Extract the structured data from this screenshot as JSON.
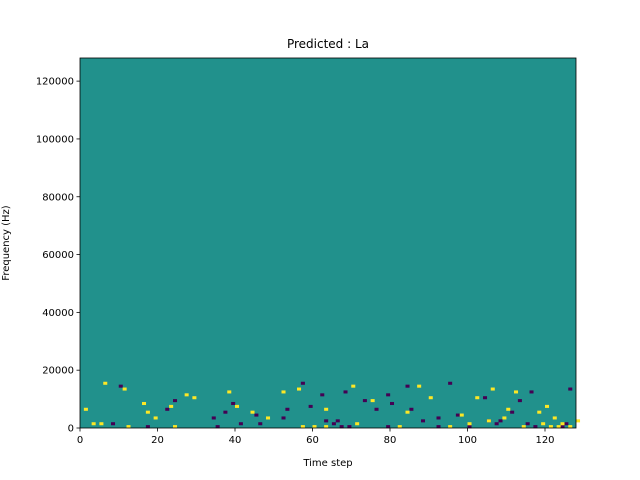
{
  "chart_data": {
    "type": "heatmap",
    "title": "Predicted : La",
    "xlabel": "Time step",
    "ylabel": "Frequency (Hz)",
    "xlim": [
      0,
      128
    ],
    "ylim": [
      0,
      128000
    ],
    "x_ticks": [
      0,
      20,
      40,
      60,
      80,
      100,
      120
    ],
    "y_ticks": [
      0,
      20000,
      40000,
      60000,
      80000,
      100000,
      120000
    ],
    "grid": false,
    "legend": "none",
    "n_time_steps": 128,
    "n_freq_bins": 128,
    "colors": {
      "background": "#21918c",
      "high": "#fde725",
      "low": "#440154"
    },
    "cells_low": [
      [
        8,
        1
      ],
      [
        17,
        0
      ],
      [
        46,
        1
      ],
      [
        52,
        3
      ],
      [
        57,
        15
      ],
      [
        66,
        2
      ],
      [
        67,
        0
      ],
      [
        80,
        8
      ],
      [
        88,
        2
      ],
      [
        107,
        1
      ],
      [
        108,
        2
      ],
      [
        111,
        5
      ],
      [
        115,
        1
      ],
      [
        10,
        14
      ],
      [
        22,
        6
      ],
      [
        24,
        9
      ],
      [
        34,
        3
      ],
      [
        37,
        5
      ],
      [
        39,
        8
      ],
      [
        45,
        4
      ],
      [
        53,
        6
      ],
      [
        59,
        7
      ],
      [
        62,
        11
      ],
      [
        68,
        12
      ],
      [
        73,
        9
      ],
      [
        76,
        6
      ],
      [
        79,
        11
      ],
      [
        84,
        14
      ],
      [
        85,
        6
      ],
      [
        92,
        3
      ],
      [
        95,
        15
      ],
      [
        97,
        4
      ],
      [
        104,
        10
      ],
      [
        113,
        9
      ],
      [
        116,
        12
      ],
      [
        126,
        13
      ],
      [
        35,
        0
      ],
      [
        41,
        1
      ],
      [
        69,
        0
      ],
      [
        79,
        0
      ],
      [
        92,
        0
      ],
      [
        100,
        0
      ],
      [
        117,
        0
      ],
      [
        124,
        0
      ],
      [
        125,
        1
      ],
      [
        63,
        2
      ],
      [
        65,
        1
      ],
      [
        105,
        2
      ]
    ],
    "cells_high": [
      [
        3,
        1
      ],
      [
        5,
        1
      ],
      [
        12,
        0
      ],
      [
        19,
        3
      ],
      [
        24,
        0
      ],
      [
        48,
        3
      ],
      [
        57,
        0
      ],
      [
        60,
        0
      ],
      [
        63,
        0
      ],
      [
        71,
        1
      ],
      [
        82,
        0
      ],
      [
        95,
        0
      ],
      [
        100,
        1
      ],
      [
        105,
        2
      ],
      [
        109,
        3
      ],
      [
        114,
        0
      ],
      [
        119,
        1
      ],
      [
        124,
        1
      ],
      [
        126,
        0
      ],
      [
        1,
        6
      ],
      [
        16,
        8
      ],
      [
        23,
        7
      ],
      [
        29,
        10
      ],
      [
        38,
        12
      ],
      [
        44,
        5
      ],
      [
        56,
        13
      ],
      [
        63,
        6
      ],
      [
        75,
        9
      ],
      [
        87,
        14
      ],
      [
        98,
        4
      ],
      [
        102,
        10
      ],
      [
        110,
        6
      ],
      [
        112,
        12
      ],
      [
        120,
        7
      ],
      [
        128,
        2
      ],
      [
        6,
        15
      ],
      [
        11,
        13
      ],
      [
        17,
        5
      ],
      [
        27,
        11
      ],
      [
        40,
        7
      ],
      [
        52,
        12
      ],
      [
        70,
        14
      ],
      [
        84,
        5
      ],
      [
        90,
        10
      ],
      [
        106,
        13
      ],
      [
        118,
        5
      ],
      [
        122,
        3
      ],
      [
        121,
        0
      ],
      [
        123,
        0
      ]
    ]
  }
}
